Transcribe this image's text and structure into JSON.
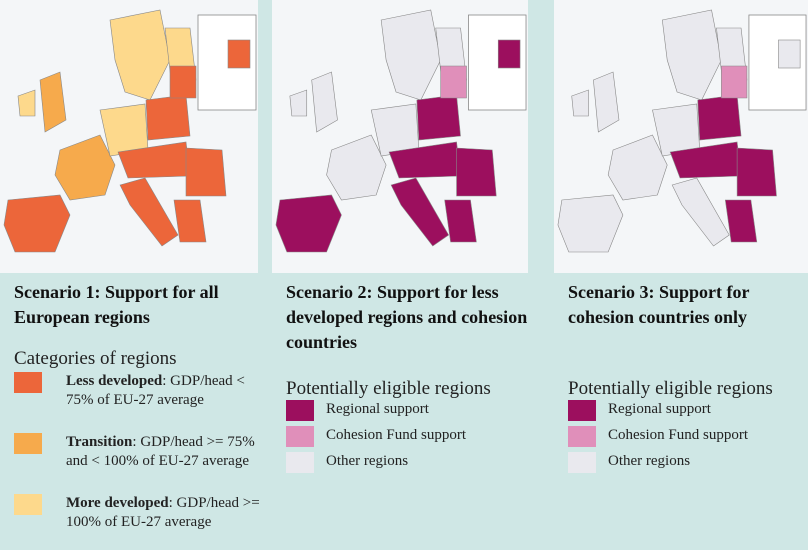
{
  "panels": [
    {
      "title": "Scenario 1: Support for all European regions",
      "legend": {
        "title": "Categories of regions",
        "items": [
          {
            "term": "Less developed",
            "text": ": GDP/head < 75% of EU-27 average",
            "color": "#ec663a"
          },
          {
            "term": "Transition",
            "text": ": GDP/head >= 75% and < 100% of EU-27 average",
            "color": "#f6aa4c"
          },
          {
            "term": "More developed",
            "text": ": GDP/head >= 100% of EU-27 average",
            "color": "#fdd98c"
          }
        ]
      }
    },
    {
      "title": "Scenario 2: Support for less developed regions and cohesion countries",
      "legend": {
        "title": "Potentially eligible regions",
        "items": [
          {
            "text": "Regional support",
            "color": "#9c0f5e"
          },
          {
            "text": "Cohesion Fund support",
            "color": "#e08fba"
          },
          {
            "text": "Other regions",
            "color": "#e9e9ee"
          }
        ]
      }
    },
    {
      "title": "Scenario 3: Support for cohesion countries only",
      "legend": {
        "title": "Potentially eligible regions",
        "items": [
          {
            "text": "Regional support",
            "color": "#9c0f5e"
          },
          {
            "text": "Cohesion Fund support",
            "color": "#e08fba"
          },
          {
            "text": "Other regions",
            "color": "#e9e9ee"
          }
        ]
      }
    }
  ]
}
